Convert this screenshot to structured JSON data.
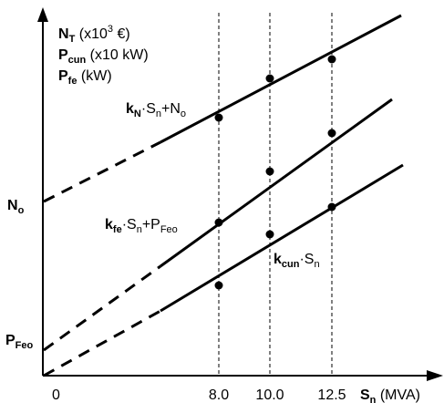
{
  "chart_data": {
    "type": "line",
    "title": "",
    "y_axis_lines": [
      {
        "main": "N",
        "sub": "T",
        "rest": " (x10",
        "sup": "3",
        "rest2": " €)"
      },
      {
        "main": "P",
        "sub": "cun",
        "rest": " (x10 kW)"
      },
      {
        "main": "P",
        "sub": "fe",
        "rest": " (kW)"
      }
    ],
    "x_axis": {
      "main": "S",
      "sub": "n",
      "unit": " (MVA)"
    },
    "x_origin_label": "0",
    "x_ticks": [
      "8.0",
      "10.0",
      "12.5"
    ],
    "y_intercepts": [
      {
        "main": "N",
        "sub": "o"
      },
      {
        "main": "P",
        "sub": "Feo"
      }
    ],
    "series": [
      {
        "name": "kN·Sn+No",
        "label_parts": {
          "k": "k",
          "ksub": "N",
          "mid": "·S",
          "msub": "n",
          "plus": "+N",
          "psub": "o"
        }
      },
      {
        "name": "kfe·Sn+PFeo",
        "label_parts": {
          "k": "k",
          "ksub": "fe",
          "mid": "·S",
          "msub": "n",
          "plus": "+P",
          "psub": "Feo"
        }
      },
      {
        "name": "kcun·Sn",
        "label_parts": {
          "k": "k",
          "ksub": "cun",
          "mid": "·S",
          "msub": "n"
        }
      }
    ],
    "markers_at_x": [
      "8.0",
      "10.0",
      "12.5"
    ],
    "line_style": {
      "solid": "Sn from about 5 to 14.5",
      "dashed": "Sn from 0 to about 5"
    },
    "grid": false
  }
}
